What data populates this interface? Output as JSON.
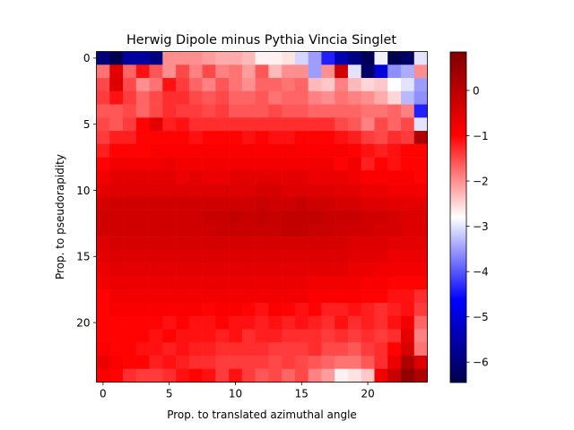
{
  "chart_data": {
    "type": "heatmap",
    "title": "Herwig Dipole minus Pythia Vincia Singlet",
    "xlabel": "Prop. to translated azimuthal angle",
    "ylabel": "Prop. to pseudorapidity",
    "n_rows": 25,
    "n_cols": 25,
    "xlim": [
      -0.5,
      24.5
    ],
    "ylim": [
      24.5,
      -0.5
    ],
    "xticks": [
      0,
      5,
      10,
      15,
      20
    ],
    "yticks": [
      0,
      5,
      10,
      15,
      20
    ],
    "colorbar": {
      "colormap": "seismic",
      "vmin": -6.45,
      "vmax": 0.85,
      "ticks": [
        0,
        -1,
        -2,
        -3,
        -4,
        -5,
        -6
      ],
      "tick_labels": [
        "0",
        "−1",
        "−2",
        "−3",
        "−4",
        "−5",
        "−6"
      ]
    },
    "values": [
      [
        -6.0,
        -6.4,
        -5.6,
        -5.6,
        -5.9,
        -2.0,
        -2.0,
        -2.0,
        -2.1,
        -2.2,
        -2.2,
        -2.3,
        -2.7,
        -2.7,
        -2.6,
        -3.1,
        -3.5,
        -4.4,
        -5.4,
        -5.9,
        -6.3,
        -2.9,
        -6.4,
        -6.2,
        -3.0
      ],
      [
        -1.8,
        -0.6,
        -1.7,
        -1.1,
        -1.6,
        -2.0,
        -1.5,
        -1.9,
        -1.5,
        -1.9,
        -1.8,
        -2.1,
        -1.6,
        -2.3,
        -2.0,
        -2.0,
        -3.5,
        -2.0,
        -0.3,
        -3.0,
        -6.2,
        -5.0,
        -3.6,
        -3.4,
        -2.0
      ],
      [
        -1.5,
        -0.5,
        -1.5,
        -2.0,
        -1.8,
        -1.1,
        -1.4,
        -1.7,
        -1.9,
        -1.6,
        -1.8,
        -2.0,
        -1.7,
        -1.7,
        -1.8,
        -1.7,
        -2.3,
        -2.4,
        -1.9,
        -2.3,
        -2.5,
        -2.4,
        -2.8,
        -3.0,
        -3.5
      ],
      [
        -1.4,
        -1.1,
        -1.4,
        -1.7,
        -1.5,
        -1.3,
        -1.3,
        -1.5,
        -1.6,
        -1.5,
        -1.7,
        -1.7,
        -1.6,
        -1.8,
        -1.7,
        -1.7,
        -1.9,
        -2.0,
        -1.8,
        -1.9,
        -2.0,
        -2.2,
        -2.5,
        -3.3,
        -3.6
      ],
      [
        -1.6,
        -1.6,
        -1.5,
        -1.7,
        -1.5,
        -1.3,
        -1.4,
        -1.4,
        -1.5,
        -1.4,
        -1.6,
        -1.6,
        -1.6,
        -1.5,
        -1.6,
        -1.6,
        -1.7,
        -1.7,
        -1.7,
        -1.7,
        -1.8,
        -1.8,
        -1.7,
        -1.9,
        -4.4
      ],
      [
        -1.5,
        -1.6,
        -1.4,
        -1.0,
        -0.6,
        -1.2,
        -1.1,
        -1.3,
        -1.3,
        -1.3,
        -1.3,
        -1.3,
        -1.3,
        -1.3,
        -1.3,
        -1.3,
        -1.3,
        -1.3,
        -1.5,
        -1.6,
        -1.9,
        -1.5,
        -1.7,
        -1.5,
        -3.0
      ],
      [
        -1.4,
        -1.2,
        -1.2,
        -1.0,
        -1.0,
        -1.0,
        -1.0,
        -1.1,
        -1.0,
        -1.0,
        -1.0,
        -1.1,
        -1.0,
        -1.1,
        -1.1,
        -1.0,
        -1.0,
        -1.0,
        -1.1,
        -1.2,
        -1.4,
        -1.5,
        -1.3,
        -1.4,
        0.2
      ],
      [
        -1.2,
        -1.0,
        -1.0,
        -1.0,
        -0.9,
        -0.9,
        -0.9,
        -0.9,
        -0.9,
        -0.9,
        -0.9,
        -0.9,
        -0.9,
        -0.9,
        -0.9,
        -0.9,
        -0.9,
        -0.9,
        -0.9,
        -1.0,
        -1.1,
        -1.2,
        -1.1,
        -1.0,
        -1.0
      ],
      [
        -1.0,
        -0.8,
        -0.8,
        -0.8,
        -0.8,
        -0.7,
        -0.8,
        -0.8,
        -0.8,
        -0.8,
        -0.8,
        -0.8,
        -0.8,
        -0.8,
        -0.8,
        -0.8,
        -0.8,
        -0.8,
        -1.0,
        -0.8,
        -1.2,
        -1.0,
        -1.1,
        -1.0,
        -1.0
      ],
      [
        -0.8,
        -0.6,
        -0.6,
        -0.6,
        -0.6,
        -0.6,
        -0.7,
        -0.6,
        -0.7,
        -0.7,
        -0.6,
        -0.6,
        -0.6,
        -0.6,
        -0.6,
        -0.6,
        -0.7,
        -0.7,
        -0.7,
        -0.8,
        -0.9,
        -0.9,
        -0.9,
        -0.9,
        -1.0
      ],
      [
        -0.6,
        -0.5,
        -0.5,
        -0.5,
        -0.5,
        -0.5,
        -0.5,
        -0.5,
        -0.5,
        -0.5,
        -0.5,
        -0.5,
        -0.4,
        -0.4,
        -0.5,
        -0.5,
        -0.5,
        -0.5,
        -0.6,
        -0.6,
        -0.7,
        -0.7,
        -0.8,
        -0.8,
        -0.8
      ],
      [
        -0.4,
        -0.3,
        -0.3,
        -0.3,
        -0.3,
        -0.3,
        -0.3,
        -0.3,
        -0.3,
        -0.3,
        -0.3,
        -0.3,
        -0.2,
        -0.3,
        -0.3,
        -0.2,
        -0.3,
        -0.3,
        -0.4,
        -0.4,
        -0.5,
        -0.5,
        -0.6,
        -0.6,
        -0.6
      ],
      [
        -0.3,
        -0.3,
        -0.3,
        -0.3,
        -0.3,
        -0.3,
        -0.3,
        -0.3,
        -0.2,
        -0.2,
        -0.1,
        -0.2,
        -0.1,
        -0.2,
        -0.1,
        -0.1,
        -0.1,
        -0.2,
        -0.2,
        -0.2,
        -0.3,
        -0.3,
        -0.4,
        -0.5,
        -0.5
      ],
      [
        -0.3,
        -0.3,
        -0.3,
        -0.3,
        -0.3,
        -0.3,
        -0.3,
        -0.3,
        -0.3,
        -0.2,
        -0.2,
        -0.2,
        -0.2,
        -0.2,
        -0.1,
        -0.1,
        -0.2,
        -0.2,
        -0.3,
        -0.3,
        -0.3,
        -0.4,
        -0.4,
        -0.5,
        -0.5
      ],
      [
        -0.5,
        -0.4,
        -0.4,
        -0.4,
        -0.4,
        -0.4,
        -0.4,
        -0.4,
        -0.4,
        -0.4,
        -0.4,
        -0.4,
        -0.4,
        -0.4,
        -0.4,
        -0.4,
        -0.4,
        -0.4,
        -0.4,
        -0.5,
        -0.5,
        -0.5,
        -0.6,
        -0.6,
        -0.6
      ],
      [
        -0.6,
        -0.5,
        -0.5,
        -0.5,
        -0.5,
        -0.5,
        -0.5,
        -0.5,
        -0.5,
        -0.5,
        -0.5,
        -0.5,
        -0.5,
        -0.5,
        -0.5,
        -0.5,
        -0.5,
        -0.5,
        -0.5,
        -0.6,
        -0.6,
        -0.6,
        -0.7,
        -0.7,
        -0.7
      ],
      [
        -0.7,
        -0.6,
        -0.6,
        -0.6,
        -0.6,
        -0.6,
        -0.6,
        -0.6,
        -0.6,
        -0.6,
        -0.6,
        -0.6,
        -0.6,
        -0.6,
        -0.6,
        -0.6,
        -0.6,
        -0.6,
        -0.6,
        -0.7,
        -0.7,
        -0.8,
        -0.8,
        -0.8,
        -0.8
      ],
      [
        -0.8,
        -0.7,
        -0.7,
        -0.7,
        -0.7,
        -0.7,
        -0.7,
        -0.7,
        -0.7,
        -0.7,
        -0.7,
        -0.7,
        -0.7,
        -0.7,
        -0.7,
        -0.7,
        -0.8,
        -0.8,
        -0.8,
        -0.8,
        -0.9,
        -0.9,
        -1.0,
        -1.0,
        -1.0
      ],
      [
        -1.0,
        -0.8,
        -0.8,
        -0.8,
        -0.8,
        -0.8,
        -0.8,
        -0.8,
        -0.8,
        -0.8,
        -0.8,
        -0.8,
        -0.8,
        -0.8,
        -0.8,
        -0.8,
        -0.9,
        -0.9,
        -0.9,
        -0.9,
        -1.0,
        -1.0,
        -1.1,
        -1.1,
        -1.3
      ],
      [
        -1.0,
        -0.9,
        -0.9,
        -0.9,
        -0.9,
        -0.9,
        -0.9,
        -0.9,
        -1.0,
        -0.9,
        -0.9,
        -1.0,
        -1.1,
        -0.9,
        -1.0,
        -1.1,
        -1.0,
        -1.2,
        -1.2,
        -1.1,
        -1.2,
        -1.3,
        -1.2,
        -1.1,
        -1.4
      ],
      [
        -1.0,
        -1.0,
        -1.0,
        -1.0,
        -1.0,
        -1.1,
        -1.0,
        -1.1,
        -1.1,
        -1.0,
        -1.1,
        -1.1,
        -1.2,
        -1.1,
        -1.2,
        -1.1,
        -1.2,
        -1.3,
        -1.1,
        -1.3,
        -1.2,
        -1.3,
        -1.1,
        -0.8,
        -1.7
      ],
      [
        -1.0,
        -1.0,
        -1.0,
        -1.0,
        -1.1,
        -1.0,
        -1.1,
        -1.1,
        -1.1,
        -1.2,
        -1.1,
        -1.3,
        -1.2,
        -1.2,
        -1.3,
        -1.3,
        -1.3,
        -1.4,
        -1.3,
        -1.4,
        -1.3,
        -1.4,
        -1.3,
        -0.6,
        -1.9
      ],
      [
        -0.9,
        -1.0,
        -1.0,
        -1.1,
        -1.1,
        -1.2,
        -1.1,
        -1.2,
        -1.2,
        -1.3,
        -1.3,
        -1.3,
        -1.3,
        -1.4,
        -1.4,
        -1.4,
        -1.3,
        -1.5,
        -1.5,
        -1.6,
        -1.4,
        -1.3,
        -1.0,
        -0.4,
        -1.8
      ],
      [
        -0.7,
        -0.9,
        -1.0,
        -1.0,
        -1.2,
        -1.1,
        -1.2,
        -1.3,
        -1.3,
        -1.4,
        -1.4,
        -1.4,
        -1.4,
        -1.5,
        -1.4,
        -1.5,
        -1.6,
        -1.7,
        -1.8,
        -1.8,
        -1.6,
        -1.3,
        -0.7,
        0.2,
        -0.5
      ],
      [
        -0.9,
        -1.0,
        -1.3,
        -1.4,
        -1.4,
        -1.3,
        -1.1,
        -1.0,
        -1.1,
        -1.4,
        -1.1,
        -1.4,
        -1.6,
        -1.5,
        -1.7,
        -1.5,
        -1.9,
        -2.1,
        -2.7,
        -2.6,
        -2.4,
        -0.8,
        -0.2,
        0.6,
        0.2
      ]
    ]
  }
}
